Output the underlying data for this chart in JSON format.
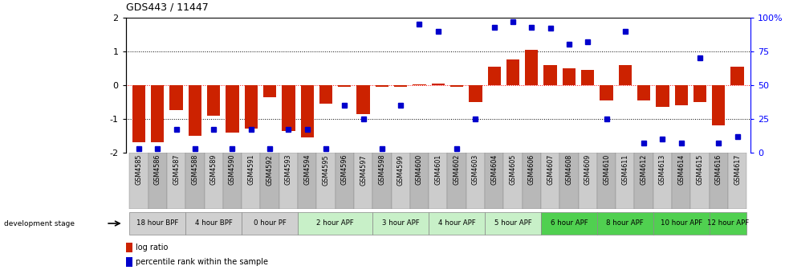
{
  "title": "GDS443 / 11447",
  "samples": [
    "GSM4585",
    "GSM4586",
    "GSM4587",
    "GSM4588",
    "GSM4589",
    "GSM4590",
    "GSM4591",
    "GSM4592",
    "GSM4593",
    "GSM4594",
    "GSM4595",
    "GSM4596",
    "GSM4597",
    "GSM4598",
    "GSM4599",
    "GSM4600",
    "GSM4601",
    "GSM4602",
    "GSM4603",
    "GSM4604",
    "GSM4605",
    "GSM4606",
    "GSM4607",
    "GSM4608",
    "GSM4609",
    "GSM4610",
    "GSM4611",
    "GSM4612",
    "GSM4613",
    "GSM4614",
    "GSM4615",
    "GSM4616",
    "GSM4617"
  ],
  "log_ratio": [
    -1.7,
    -1.7,
    -0.75,
    -1.5,
    -0.9,
    -1.4,
    -1.3,
    -0.35,
    -1.35,
    -1.55,
    -0.55,
    -0.05,
    -0.85,
    -0.05,
    -0.05,
    0.02,
    0.04,
    -0.05,
    -0.5,
    0.55,
    0.75,
    1.05,
    0.6,
    0.5,
    0.45,
    -0.45,
    0.6,
    -0.45,
    -0.65,
    -0.6,
    -0.5,
    -1.2,
    0.55
  ],
  "percentile": [
    3,
    3,
    17,
    3,
    17,
    3,
    17,
    3,
    17,
    17,
    3,
    35,
    25,
    3,
    35,
    95,
    90,
    3,
    25,
    93,
    97,
    93,
    92,
    80,
    82,
    25,
    90,
    7,
    10,
    7,
    70,
    7,
    12
  ],
  "stages": [
    {
      "label": "18 hour BPF",
      "count": 3,
      "color": "#d0d0d0"
    },
    {
      "label": "4 hour BPF",
      "count": 3,
      "color": "#d0d0d0"
    },
    {
      "label": "0 hour PF",
      "count": 3,
      "color": "#d0d0d0"
    },
    {
      "label": "2 hour APF",
      "count": 4,
      "color": "#c8f0c8"
    },
    {
      "label": "3 hour APF",
      "count": 3,
      "color": "#c8f0c8"
    },
    {
      "label": "4 hour APF",
      "count": 3,
      "color": "#c8f0c8"
    },
    {
      "label": "5 hour APF",
      "count": 3,
      "color": "#c8f0c8"
    },
    {
      "label": "6 hour APF",
      "count": 3,
      "color": "#50d050"
    },
    {
      "label": "8 hour APF",
      "count": 3,
      "color": "#50d050"
    },
    {
      "label": "10 hour APF",
      "count": 3,
      "color": "#50d050"
    },
    {
      "label": "12 hour APF",
      "count": 2,
      "color": "#50d050"
    }
  ],
  "bar_color": "#CC2200",
  "dot_color": "#0000CC",
  "ylim": [
    -2,
    2
  ],
  "yticks_left": [
    -2,
    -1,
    0,
    1,
    2
  ],
  "yticks_right": [
    0,
    25,
    50,
    75,
    100
  ],
  "hlines_dotted_black": [
    -1,
    1
  ],
  "hline_red": 0
}
